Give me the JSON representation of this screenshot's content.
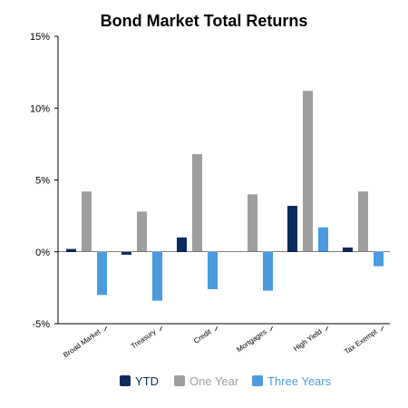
{
  "chart_data": {
    "type": "bar",
    "title": "Bond Market Total Returns",
    "categories": [
      "Broad Market",
      "Treasury",
      "Credit",
      "Mortgages",
      "High Yield",
      "Tax Exempt"
    ],
    "series": [
      {
        "name": "YTD",
        "color": "#0d2b5c",
        "values": [
          0.2,
          -0.2,
          1.0,
          0.0,
          3.2,
          0.3
        ]
      },
      {
        "name": "One Year",
        "color": "#9e9e9e",
        "values": [
          4.2,
          2.8,
          6.8,
          4.0,
          11.2,
          4.2
        ]
      },
      {
        "name": "Three Years",
        "color": "#4a9be0",
        "values": [
          -3.0,
          -3.4,
          -2.6,
          -2.7,
          1.7,
          -1.0
        ]
      }
    ],
    "yticks": [
      "15%",
      "10%",
      "5%",
      "0%",
      "-5%"
    ],
    "ylim": [
      -5,
      15
    ],
    "legend_position": "bottom",
    "grid": false
  }
}
